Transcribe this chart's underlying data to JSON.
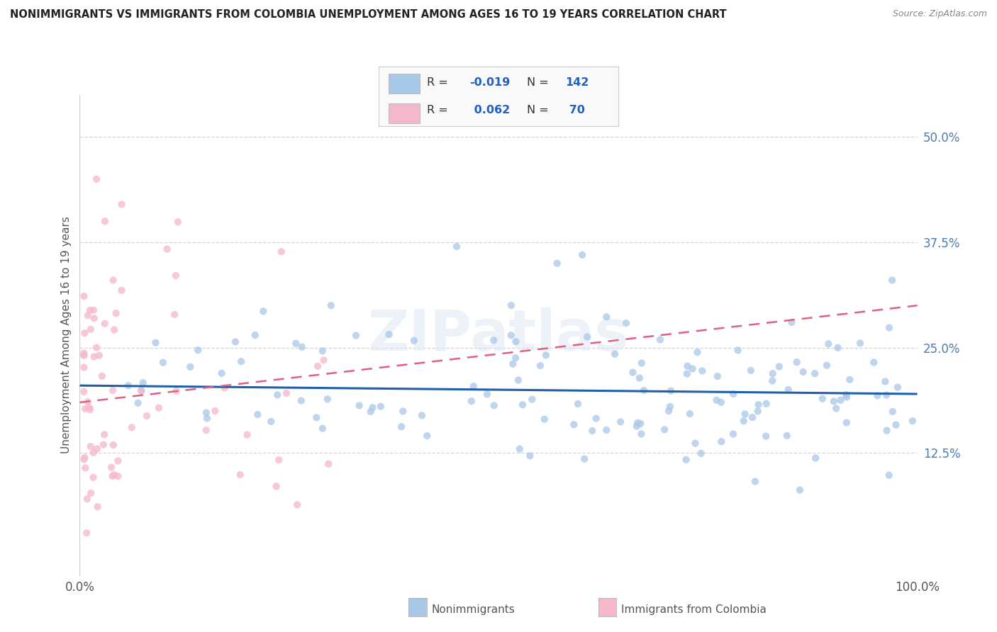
{
  "title": "NONIMMIGRANTS VS IMMIGRANTS FROM COLOMBIA UNEMPLOYMENT AMONG AGES 16 TO 19 YEARS CORRELATION CHART",
  "source": "Source: ZipAtlas.com",
  "ylabel": "Unemployment Among Ages 16 to 19 years",
  "xlim": [
    0,
    100
  ],
  "ylim": [
    -2,
    55
  ],
  "ytick_vals": [
    0,
    12.5,
    25.0,
    37.5,
    50.0
  ],
  "ytick_labels": [
    "",
    "12.5%",
    "25.0%",
    "37.5%",
    "50.0%"
  ],
  "xtick_vals": [
    0,
    100
  ],
  "xtick_labels": [
    "0.0%",
    "100.0%"
  ],
  "nonimm_color": "#a8c8e8",
  "imm_color": "#f5b8cb",
  "nonimm_line_color": "#2060a8",
  "imm_line_color": "#e06080",
  "watermark": "ZIPatlas",
  "bg_color": "#ffffff",
  "grid_color": "#cccccc",
  "title_color": "#222222",
  "source_color": "#888888",
  "tick_color_y": "#4a7cb5",
  "tick_color_x": "#555555",
  "legend_r1": "-0.019",
  "legend_n1": "142",
  "legend_r2": "0.062",
  "legend_n2": "70"
}
